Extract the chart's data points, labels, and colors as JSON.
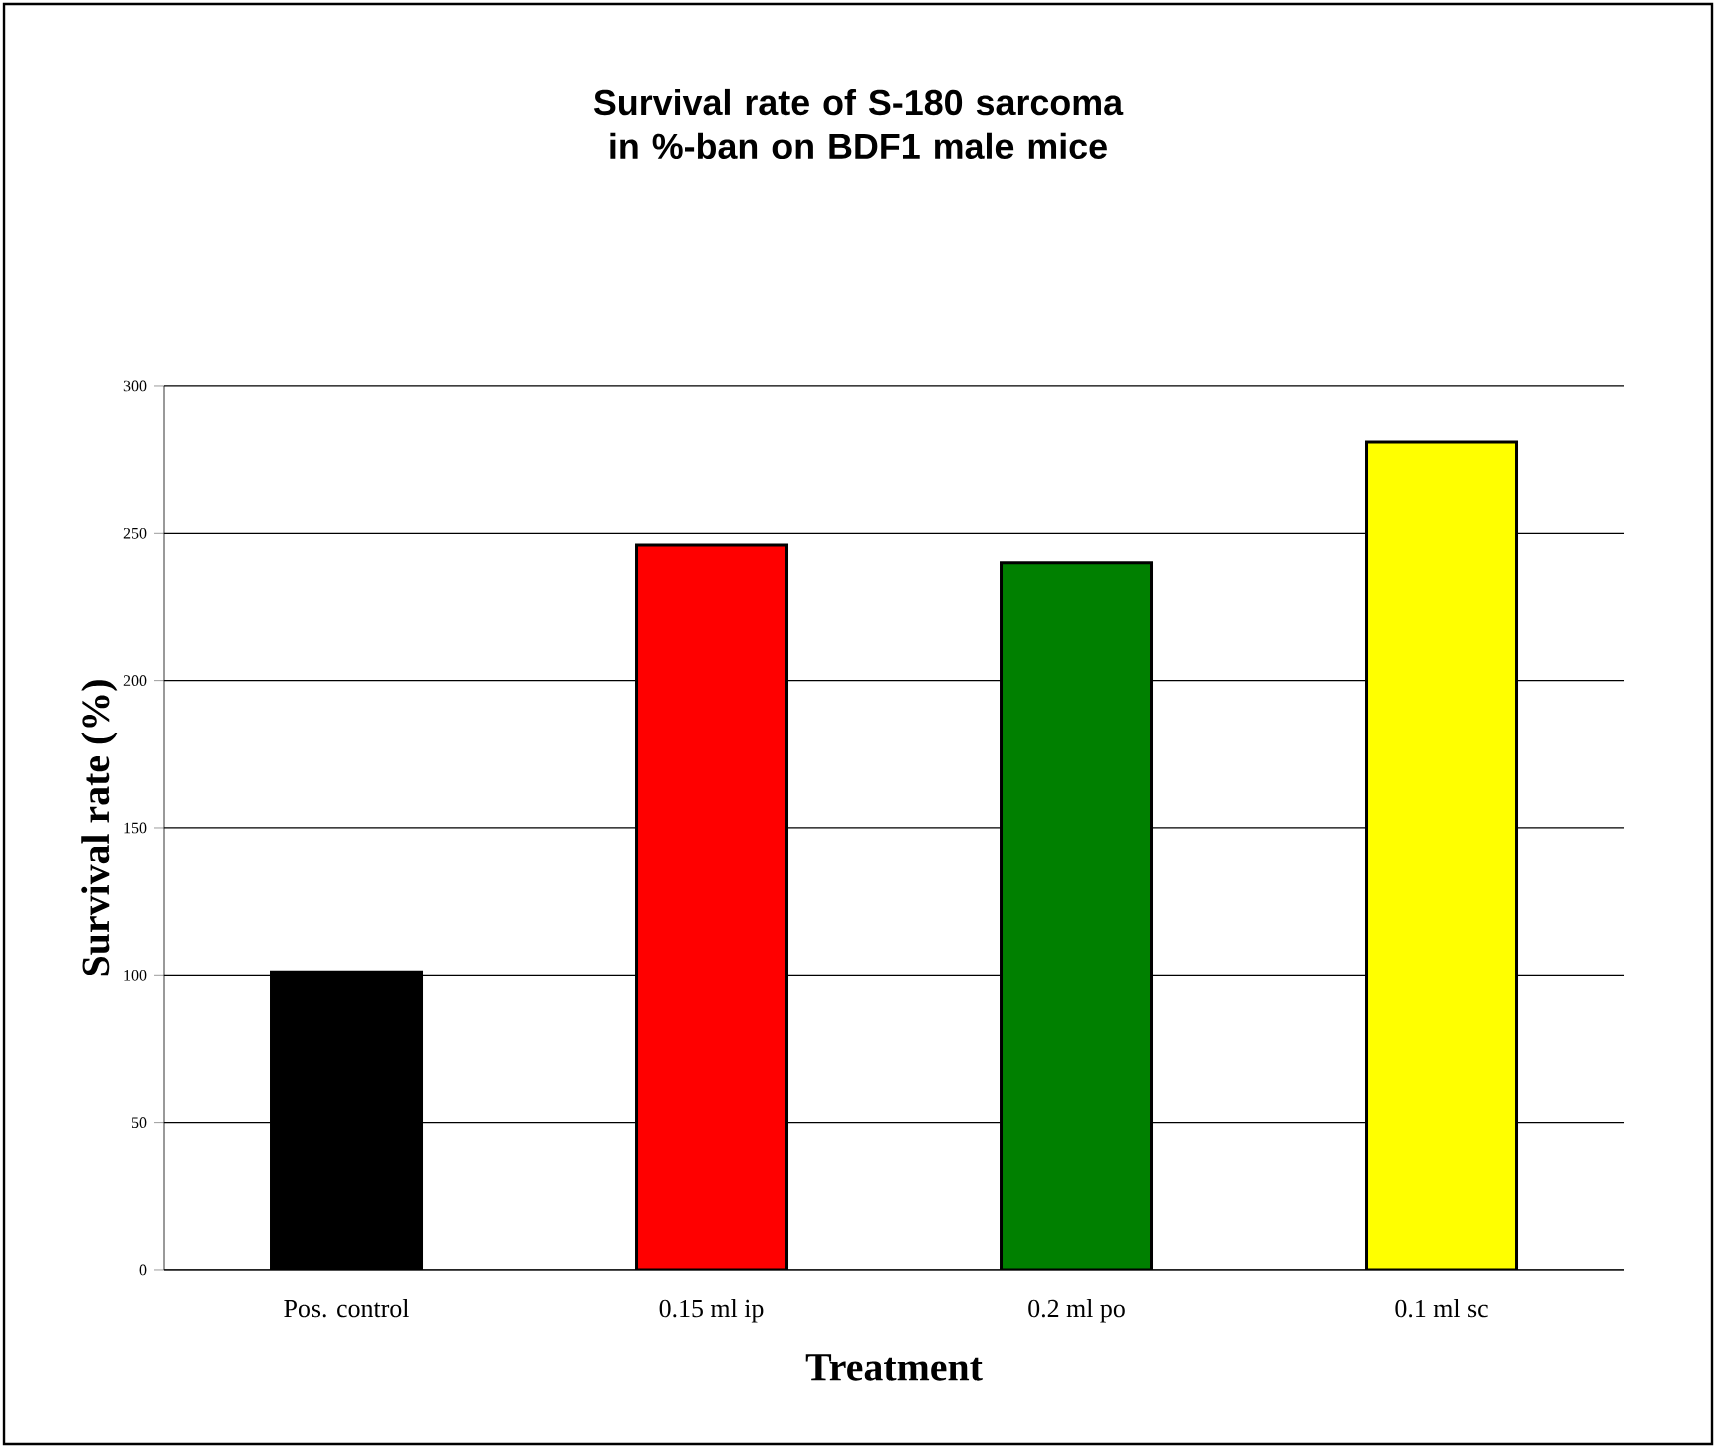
{
  "chart_data": {
    "type": "bar",
    "title": "Survival rate of S-180 sarcoma in %-ban on BDF1 male mice",
    "xlabel": "Treatment",
    "ylabel": "Survival rate (%)",
    "categories": [
      "Pos. control",
      "0.15 ml ip",
      "0.2 ml po",
      "0.1 ml sc"
    ],
    "values": [
      101,
      246,
      240,
      281
    ],
    "colors": [
      "#000000",
      "#ff0000",
      "#008000",
      "#ffff00"
    ],
    "ylim": [
      0,
      300
    ],
    "yticks": [
      0,
      50,
      100,
      150,
      200,
      250,
      300
    ],
    "grid": "y"
  }
}
